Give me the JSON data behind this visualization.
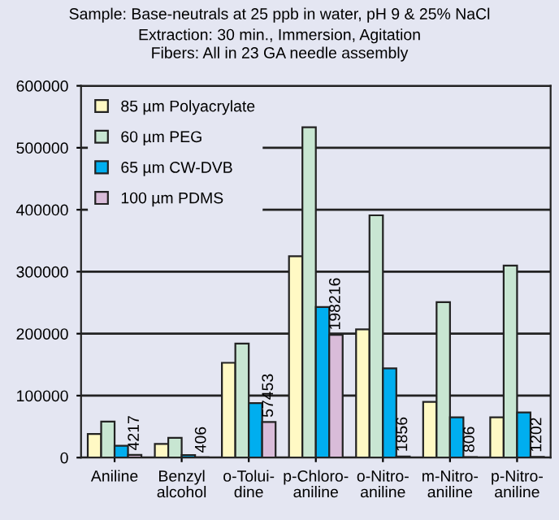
{
  "chart_data": {
    "type": "bar",
    "title": "Sample: Base-neutrals at 25 ppb in water, pH 9 & 25% NaCl",
    "subtitle": "Extraction: 30 min., Immersion, Agitation\nFibers: All in 23 GA needle assembly",
    "categories": [
      "Aniline",
      "Benzyl\nalcohol",
      "o-Tolui-\ndine",
      "p-Chloro-\naniline",
      "o-Nitro-\naniline",
      "m-Nitro-\naniline",
      "p-Nitro-\naniline"
    ],
    "series": [
      {
        "name": "85 µm Polyacrylate",
        "color": "#fff9c4",
        "values": [
          38000,
          22000,
          153000,
          325000,
          207000,
          90000,
          65000
        ]
      },
      {
        "name": "60 µm PEG",
        "color": "#c8e6d2",
        "values": [
          58000,
          32000,
          184000,
          533000,
          391000,
          251000,
          310000
        ]
      },
      {
        "name": "65 µm CW-DVB",
        "color": "#00aeef",
        "values": [
          19000,
          4000,
          88000,
          243000,
          144000,
          65000,
          73000
        ]
      },
      {
        "name": "100 µm PDMS",
        "color": "#d9bcd9",
        "values": [
          4217,
          406,
          57453,
          198216,
          1856,
          806,
          1202
        ],
        "value_labels": [
          "4217",
          "406",
          "57453",
          "198216",
          "1856",
          "806",
          "1202"
        ]
      }
    ],
    "ylim": [
      0,
      600000
    ],
    "yticks": [
      0,
      100000,
      200000,
      300000,
      400000,
      500000,
      600000
    ],
    "grid": "y",
    "legend": "top left"
  }
}
